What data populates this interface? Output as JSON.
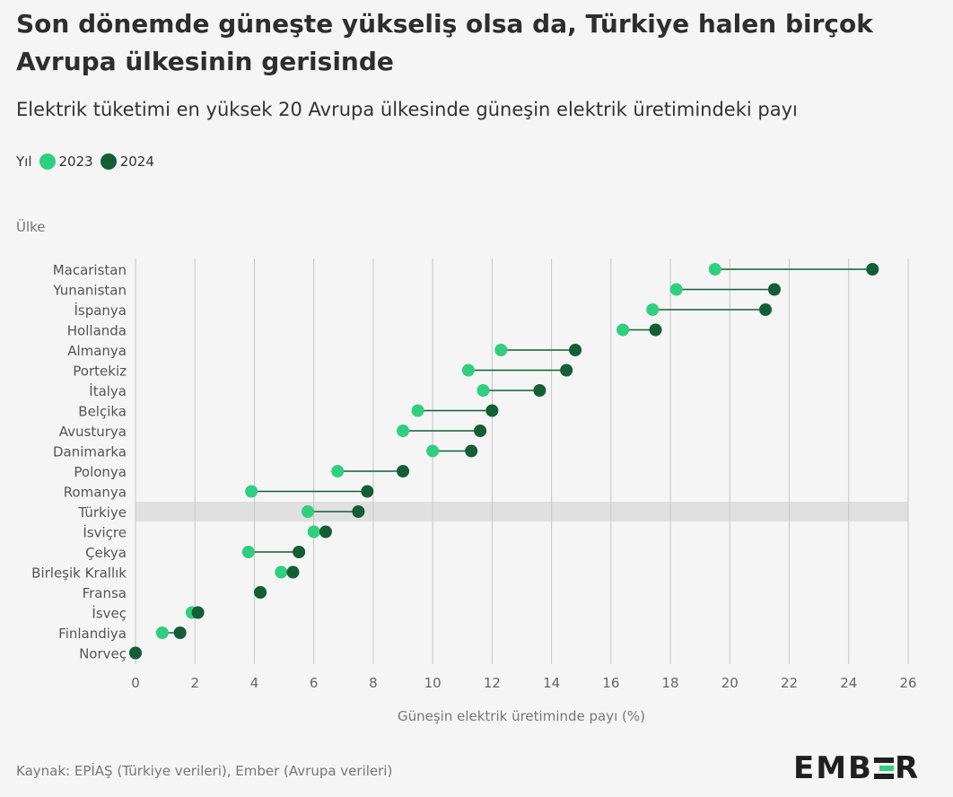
{
  "title": "Son dönemde güneşte yükseliş olsa da, Türkiye halen birçok Avrupa ülkesinin gerisinde",
  "subtitle": "Elektrik tüketimi en yüksek 20 Avrupa ülkesinde güneşin elektrik üretimindeki payı",
  "legend": {
    "title": "Yıl",
    "items": [
      {
        "label": "2023",
        "color": "#2fcf7f"
      },
      {
        "label": "2024",
        "color": "#135e35"
      }
    ]
  },
  "y_axis_title": "Ülke",
  "source": "Kaynak: EPİAŞ (Türkiye verileri), Ember (Avrupa verileri)",
  "logo": {
    "text": "EMBER",
    "bar_colors": [
      "#1f1f1f",
      "#2fcf7f",
      "#1f1f1f"
    ]
  },
  "chart_data": {
    "type": "dumbbell",
    "title": "Son dönemde güneşte yükseliş olsa da, Türkiye halen birçok Avrupa ülkesinin gerisinde",
    "subtitle": "Elektrik tüketimi en yüksek 20 Avrupa ülkesinde güneşin elektrik üretimindeki payı",
    "xlabel": "Güneşin elektrik üretiminde payı (%)",
    "ylabel": "Ülke",
    "xlim": [
      0,
      26
    ],
    "xticks": [
      0,
      2,
      4,
      6,
      8,
      10,
      12,
      14,
      16,
      18,
      20,
      22,
      24,
      26
    ],
    "grid": "vertical",
    "legend_position": "top-left",
    "highlight": "Türkiye",
    "highlight_color": "#e0e0e0",
    "connector_color": "#135e35",
    "categories": [
      "Macaristan",
      "Yunanistan",
      "İspanya",
      "Hollanda",
      "Almanya",
      "Portekiz",
      "İtalya",
      "Belçika",
      "Avusturya",
      "Danimarka",
      "Polonya",
      "Romanya",
      "Türkiye",
      "İsviçre",
      "Çekya",
      "Birleşik Krallık",
      "Fransa",
      "İsveç",
      "Finlandiya",
      "Norveç"
    ],
    "series": [
      {
        "name": "2023",
        "color": "#2fcf7f",
        "values": [
          19.5,
          18.2,
          17.4,
          16.4,
          12.3,
          11.2,
          11.7,
          9.5,
          9.0,
          10.0,
          6.8,
          3.9,
          5.8,
          6.0,
          3.8,
          4.9,
          4.2,
          1.9,
          0.9,
          0.0
        ]
      },
      {
        "name": "2024",
        "color": "#135e35",
        "values": [
          24.8,
          21.5,
          21.2,
          17.5,
          14.8,
          14.5,
          13.6,
          12.0,
          11.6,
          11.3,
          9.0,
          7.8,
          7.5,
          6.4,
          5.5,
          5.3,
          4.2,
          2.1,
          1.5,
          0.0
        ]
      }
    ]
  }
}
